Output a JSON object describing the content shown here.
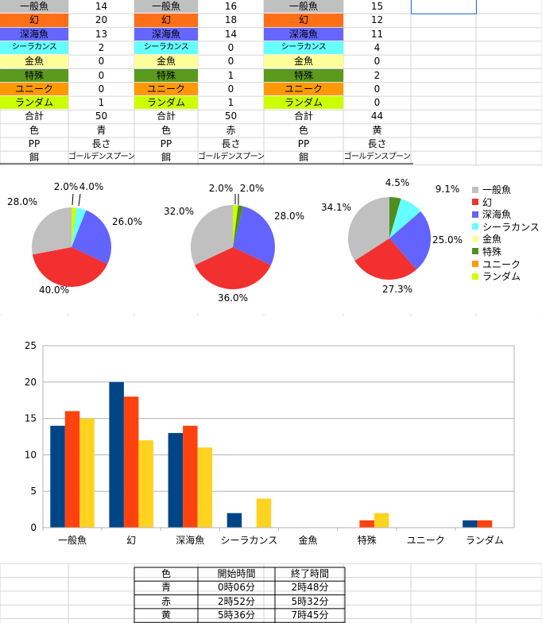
{
  "tables": [
    {
      "rows": [
        {
          "label": "一般魚",
          "value": "14",
          "bg": "#c0c0c0"
        },
        {
          "label": "幻",
          "value": "20",
          "bg": "#ff6f16"
        },
        {
          "label": "深海魚",
          "value": "13",
          "bg": "#6666ff"
        },
        {
          "label": "シーラカンス",
          "value": "2",
          "bg": "#66ffff"
        },
        {
          "label": "金魚",
          "value": "0",
          "bg": "#ffff99"
        },
        {
          "label": "特殊",
          "value": "0",
          "bg": "#5b9a1c"
        },
        {
          "label": "ユニーク",
          "value": "0",
          "bg": "#ff9900"
        },
        {
          "label": "ランダム",
          "value": "1",
          "bg": "#ccff00"
        }
      ],
      "total_label": "合計",
      "total": "50",
      "color_label": "色",
      "color": "青",
      "pp_label": "PP",
      "pp": "長さ",
      "bait_label": "餌",
      "bait": "ゴールデンスプーン"
    },
    {
      "rows": [
        {
          "label": "一般魚",
          "value": "16",
          "bg": "#c0c0c0"
        },
        {
          "label": "幻",
          "value": "18",
          "bg": "#ff6f16"
        },
        {
          "label": "深海魚",
          "value": "14",
          "bg": "#6666ff"
        },
        {
          "label": "シーラカンス",
          "value": "0",
          "bg": "#66ffff"
        },
        {
          "label": "金魚",
          "value": "0",
          "bg": "#ffff99"
        },
        {
          "label": "特殊",
          "value": "1",
          "bg": "#5b9a1c"
        },
        {
          "label": "ユニーク",
          "value": "0",
          "bg": "#ff9900"
        },
        {
          "label": "ランダム",
          "value": "1",
          "bg": "#ccff00"
        }
      ],
      "total_label": "合計",
      "total": "50",
      "color_label": "色",
      "color": "赤",
      "pp_label": "PP",
      "pp": "長さ",
      "bait_label": "餌",
      "bait": "ゴールデンスプーン"
    },
    {
      "rows": [
        {
          "label": "一般魚",
          "value": "15",
          "bg": "#c0c0c0"
        },
        {
          "label": "幻",
          "value": "12",
          "bg": "#ff6f16"
        },
        {
          "label": "深海魚",
          "value": "11",
          "bg": "#6666ff"
        },
        {
          "label": "シーラカンス",
          "value": "4",
          "bg": "#66ffff"
        },
        {
          "label": "金魚",
          "value": "0",
          "bg": "#ffff99"
        },
        {
          "label": "特殊",
          "value": "2",
          "bg": "#5b9a1c"
        },
        {
          "label": "ユニーク",
          "value": "0",
          "bg": "#ff9900"
        },
        {
          "label": "ランダム",
          "value": "0",
          "bg": "#ccff00"
        }
      ],
      "total_label": "合計",
      "total": "44",
      "color_label": "色",
      "color": "黄",
      "pp_label": "PP",
      "pp": "長さ",
      "bait_label": "餌",
      "bait": "ゴールデンスプーン"
    }
  ],
  "chart_data": [
    {
      "type": "pie",
      "categories": [
        "一般魚",
        "幻",
        "深海魚",
        "シーラカンス",
        "金魚",
        "特殊",
        "ユニーク",
        "ランダム"
      ],
      "values": [
        14,
        20,
        13,
        2,
        0,
        0,
        0,
        1
      ],
      "data_labels": [
        "28.0%",
        "40.0%",
        "26.0%",
        "4.0%",
        "",
        "",
        "",
        "2.0%"
      ],
      "colors": [
        "#c0c0c0",
        "#f23030",
        "#6363ff",
        "#66ffff",
        "#ffff99",
        "#4f8f1f",
        "#ff9900",
        "#ccff00"
      ]
    },
    {
      "type": "pie",
      "categories": [
        "一般魚",
        "幻",
        "深海魚",
        "シーラカンス",
        "金魚",
        "特殊",
        "ユニーク",
        "ランダム"
      ],
      "values": [
        16,
        18,
        14,
        0,
        0,
        1,
        0,
        1
      ],
      "data_labels": [
        "32.0%",
        "36.0%",
        "28.0%",
        "",
        "",
        "2.0%",
        "",
        "2.0%"
      ],
      "colors": [
        "#c0c0c0",
        "#f23030",
        "#6363ff",
        "#66ffff",
        "#ffff99",
        "#4f8f1f",
        "#ff9900",
        "#ccff00"
      ]
    },
    {
      "type": "pie",
      "categories": [
        "一般魚",
        "幻",
        "深海魚",
        "シーラカンス",
        "金魚",
        "特殊",
        "ユニーク",
        "ランダム"
      ],
      "values": [
        15,
        12,
        11,
        4,
        0,
        2,
        0,
        0
      ],
      "data_labels": [
        "34.1%",
        "27.3%",
        "25.0%",
        "9.1%",
        "",
        "4.5%",
        "",
        ""
      ],
      "colors": [
        "#c0c0c0",
        "#f23030",
        "#6363ff",
        "#66ffff",
        "#ffff99",
        "#4f8f1f",
        "#ff9900",
        "#ccff00"
      ],
      "legend": [
        "一般魚",
        "幻",
        "深海魚",
        "シーラカンス",
        "金魚",
        "特殊",
        "ユニーク",
        "ランダム"
      ],
      "legend_position": "right"
    },
    {
      "type": "bar",
      "categories": [
        "一般魚",
        "幻",
        "深海魚",
        "シーラカンス",
        "金魚",
        "特殊",
        "ユニーク",
        "ランダム"
      ],
      "series": [
        {
          "values": [
            14,
            20,
            13,
            2,
            0,
            0,
            0,
            1
          ],
          "color": "#004586"
        },
        {
          "values": [
            16,
            18,
            14,
            0,
            0,
            1,
            0,
            1
          ],
          "color": "#ff420e"
        },
        {
          "values": [
            15,
            12,
            11,
            4,
            0,
            2,
            0,
            0
          ],
          "color": "#ffd320"
        }
      ],
      "ylim": [
        0,
        25
      ],
      "yticks": [
        "0",
        "5",
        "10",
        "15",
        "20",
        "25"
      ],
      "grid": true
    }
  ],
  "time_table": {
    "headers": [
      "色",
      "開始時間",
      "終了時間"
    ],
    "rows": [
      [
        "青",
        "0時06分",
        "2時48分"
      ],
      [
        "赤",
        "2時52分",
        "5時32分"
      ],
      [
        "黄",
        "5時36分",
        "7時45分"
      ]
    ]
  }
}
